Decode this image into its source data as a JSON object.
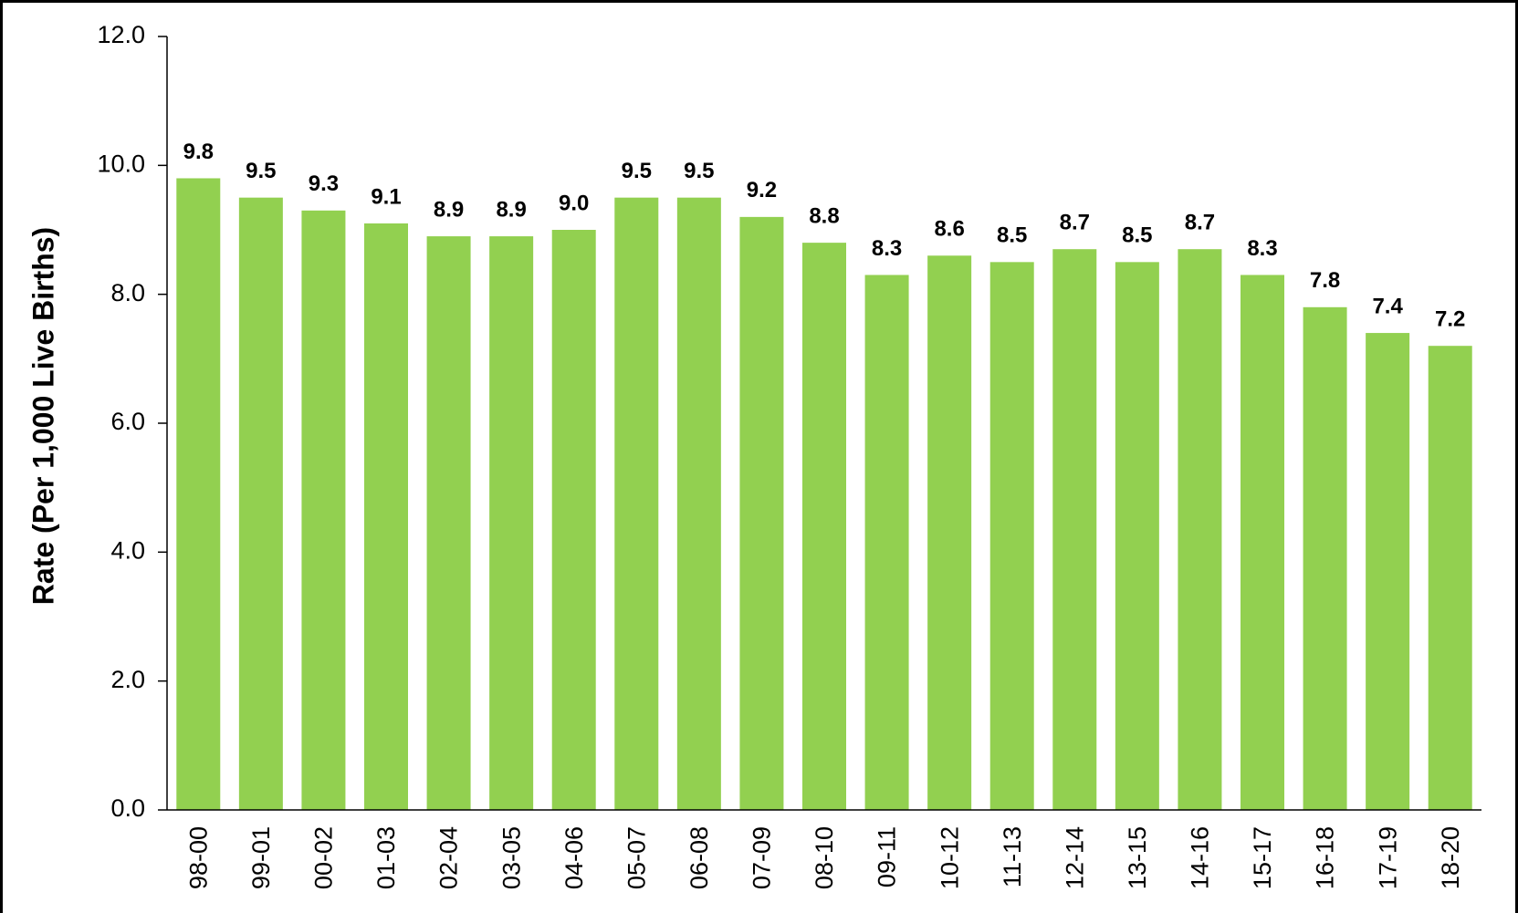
{
  "chart_data": {
    "type": "bar",
    "y_label": "Rate (Per 1,000 Live Births)",
    "categories": [
      "98-00",
      "99-01",
      "00-02",
      "01-03",
      "02-04",
      "03-05",
      "04-06",
      "05-07",
      "06-08",
      "07-09",
      "08-10",
      "09-11",
      "10-12",
      "11-13",
      "12-14",
      "13-15",
      "14-16",
      "15-17",
      "16-18",
      "17-19",
      "18-20"
    ],
    "values": [
      9.8,
      9.5,
      9.3,
      9.1,
      8.9,
      8.9,
      9.0,
      9.5,
      9.5,
      9.2,
      8.8,
      8.3,
      8.6,
      8.5,
      8.7,
      8.5,
      8.7,
      8.3,
      7.8,
      7.4,
      7.2
    ],
    "value_labels": [
      "9.8",
      "9.5",
      "9.3",
      "9.1",
      "8.9",
      "8.9",
      "9.0",
      "9.5",
      "9.5",
      "9.2",
      "8.8",
      "8.3",
      "8.6",
      "8.5",
      "8.7",
      "8.5",
      "8.7",
      "8.3",
      "7.8",
      "7.4",
      "7.2"
    ],
    "color": "#92d050",
    "ylim": [
      0,
      12
    ],
    "yticks": [
      {
        "value": 0,
        "label": "0.0"
      },
      {
        "value": 2,
        "label": "2.0"
      },
      {
        "value": 4,
        "label": "4.0"
      },
      {
        "value": 6,
        "label": "6.0"
      },
      {
        "value": 8,
        "label": "8.0"
      },
      {
        "value": 10,
        "label": "10.0"
      },
      {
        "value": 12,
        "label": "12.0"
      }
    ],
    "grid": false
  }
}
